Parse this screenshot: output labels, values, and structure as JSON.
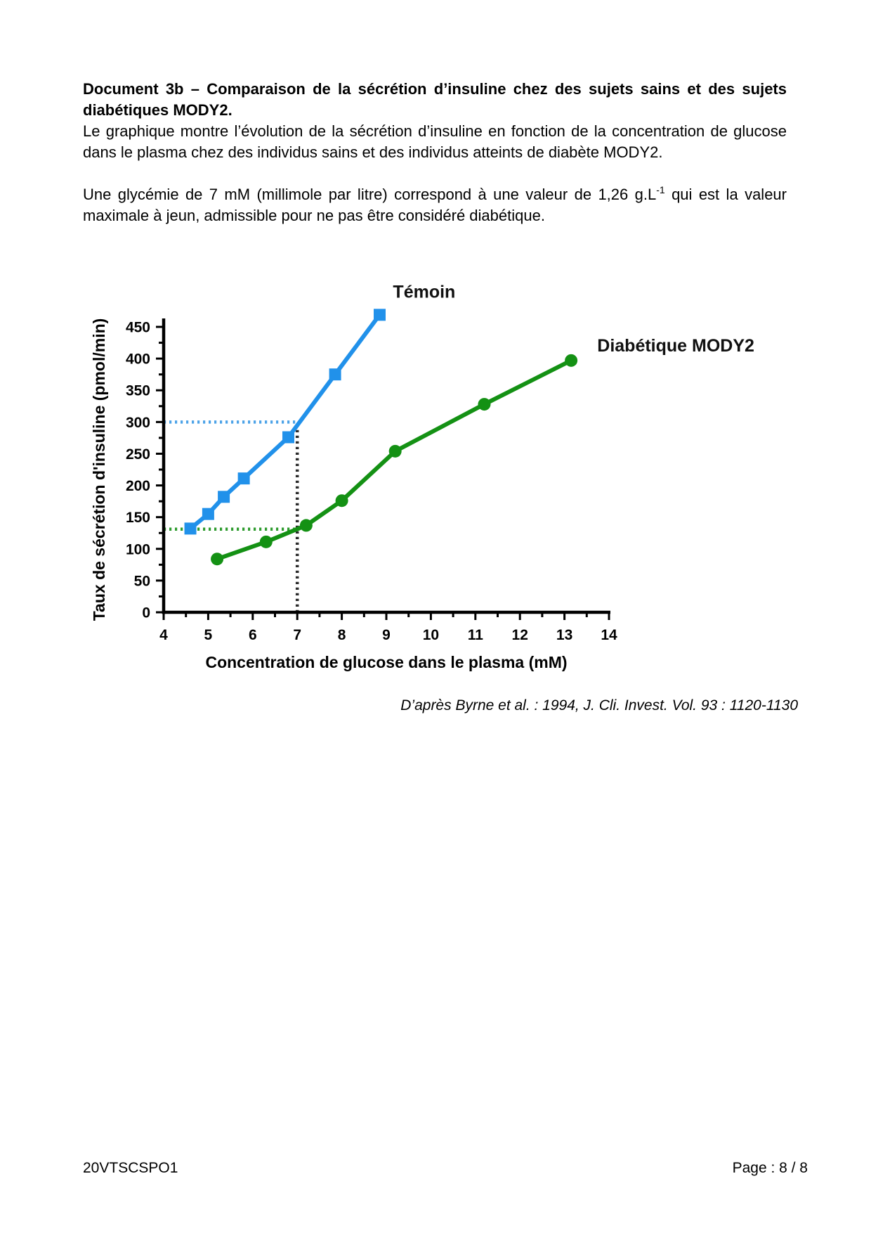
{
  "document": {
    "heading": "Document 3b – Comparaison de la sécrétion d’insuline chez des sujets sains et des sujets diabétiques MODY2.",
    "paragraph1": "Le graphique montre l’évolution de la sécrétion d’insuline en fonction de la concentration de glucose dans le plasma chez des individus sains et des individus atteints de diabète MODY2.",
    "paragraph2_before_sup": "Une glycémie de 7 mM (millimole par litre) correspond à une valeur de 1,26 g.L",
    "paragraph2_sup": "-1",
    "paragraph2_after_sup": " qui est la valeur maximale à jeun, admissible pour ne pas être considéré diabétique.",
    "source_caption": "D’après Byrne et al. : 1994, J. Cli. Invest. Vol. 93 : 1120-1130"
  },
  "footer": {
    "left": "20VTSCSPO1",
    "right": "Page : 8 / 8"
  },
  "chart_data": {
    "type": "line",
    "xlabel": "Concentration de glucose dans le plasma (mM)",
    "ylabel": "Taux de sécrétion d'insuline (pmol/min)",
    "xlim": [
      4,
      14
    ],
    "ylim": [
      0,
      450
    ],
    "x_major_ticks": [
      4,
      5,
      6,
      7,
      8,
      9,
      10,
      11,
      12,
      13,
      14
    ],
    "y_major_ticks": [
      0,
      50,
      100,
      150,
      200,
      250,
      300,
      350,
      400,
      450
    ],
    "x_minor_step": 0.5,
    "y_minor_step": 25,
    "grid": false,
    "legend_position": "inline-labels",
    "series": [
      {
        "name": "Témoin",
        "color": "#2191ea",
        "marker": "square",
        "points": [
          [
            4.6,
            132
          ],
          [
            5.0,
            155
          ],
          [
            5.35,
            182
          ],
          [
            5.8,
            211
          ],
          [
            6.8,
            276
          ],
          [
            7.85,
            375
          ],
          [
            8.85,
            469
          ]
        ],
        "label_anchor": [
          9.85,
          505
        ]
      },
      {
        "name": "Diabétique MODY2",
        "color": "#149114",
        "marker": "circle",
        "points": [
          [
            5.2,
            84
          ],
          [
            6.3,
            111
          ],
          [
            7.2,
            137
          ],
          [
            8.0,
            176
          ],
          [
            9.2,
            254
          ],
          [
            11.2,
            328
          ],
          [
            13.15,
            397
          ]
        ],
        "label_anchor": [
          15.5,
          420
        ]
      }
    ],
    "annotations": {
      "h_dotted": [
        {
          "y": 300,
          "x_from": 4,
          "x_to": 7.0,
          "color": "#4da3e8"
        },
        {
          "y": 131,
          "x_from": 4,
          "x_to": 7.05,
          "color": "#2e9b2e"
        }
      ],
      "v_dotted": [
        {
          "x": 7,
          "y_from": 0,
          "y_to": 300,
          "color": "#2b2b2b"
        }
      ]
    }
  }
}
